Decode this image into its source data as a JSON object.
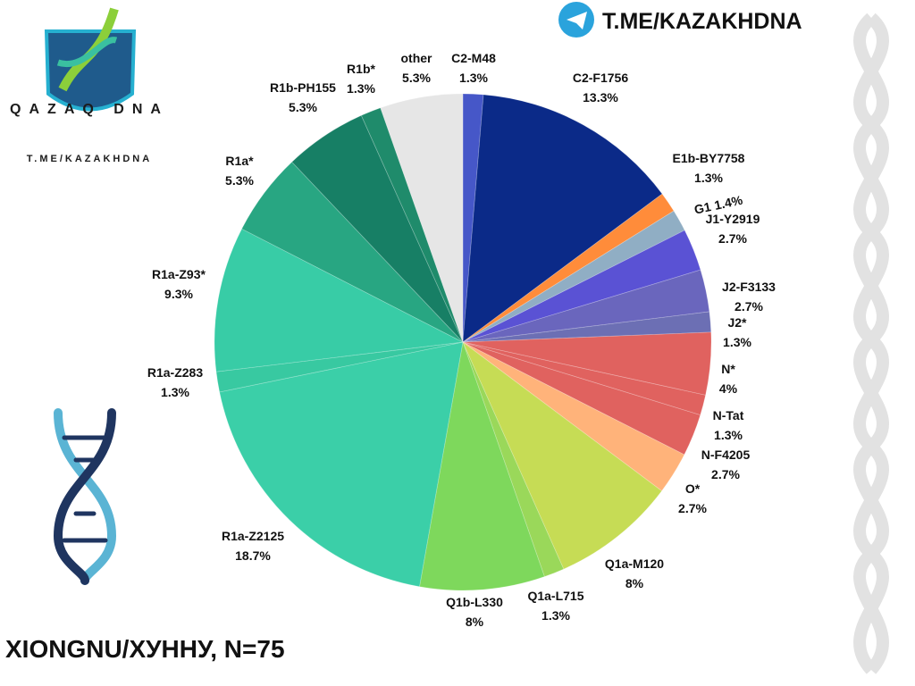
{
  "header": {
    "channel": "T.ME/KAZAKHDNA",
    "logo": "QAZAQ DNA",
    "logo_link": "T.ME/KAZAKHDNA"
  },
  "chart_data": {
    "type": "pie",
    "title": "XIONGNU/ХУННУ, N=75",
    "categories": [
      "C2-M48",
      "C2-F1756",
      "E1b-BY7758",
      "G1",
      "J1-Y2919",
      "J2-F3133",
      "J2*",
      "N*",
      "N-Tat",
      "N-F4205",
      "O*",
      "Q1a-M120",
      "Q1a-L715",
      "Q1b-L330",
      "R1a-Z2125",
      "R1a-Z283",
      "R1a-Z93*",
      "R1a*",
      "R1b-PH155",
      "R1b*",
      "other"
    ],
    "values": [
      1.3,
      13.3,
      1.3,
      1.4,
      2.7,
      2.7,
      1.3,
      4,
      1.3,
      2.7,
      2.7,
      8,
      1.3,
      8,
      18.7,
      1.3,
      9.3,
      5.3,
      5.3,
      1.3,
      5.3
    ],
    "value_labels": [
      "1.3%",
      "13.3%",
      "1.3%",
      "1.4%",
      "2.7%",
      "2.7%",
      "1.3%",
      "4%",
      "1.3%",
      "2.7%",
      "2.7%",
      "8%",
      "1.3%",
      "8%",
      "18.7%",
      "1.3%",
      "9.3%",
      "5.3%",
      "5.3%",
      "1.3%",
      "5.3%"
    ],
    "colors": [
      "#4657c8",
      "#0b2a88",
      "#ff8c3a",
      "#90aec4",
      "#5a52d4",
      "#6a66bd",
      "#6c6fb4",
      "#e0625f",
      "#e0625f",
      "#e0625f",
      "#ffb37a",
      "#c6dc55",
      "#9ad85a",
      "#7ed85c",
      "#3bcfa8",
      "#38c9a1",
      "#38cca6",
      "#28a682",
      "#177f65",
      "#1f8b6b",
      "#e6e6e6"
    ]
  }
}
